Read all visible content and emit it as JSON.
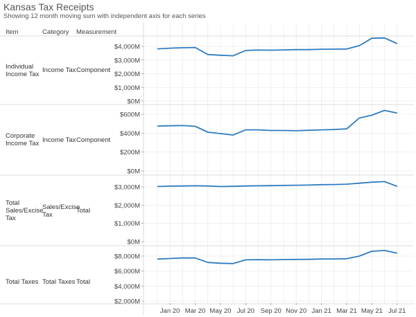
{
  "header": {
    "title": "Kansas Tax Receipts",
    "subtitle": "Showing 12 month moving sum with independent axis for each series",
    "col_item": "Item",
    "col_category": "Category",
    "col_measurement": "Measurement"
  },
  "colors": {
    "line": "#2e7bc0",
    "grid": "#e6e6e6",
    "border": "#cfcfcf"
  },
  "chart_data": {
    "type": "line",
    "x_tick_labels": [
      "Jan 20",
      "Mar 20",
      "May 20",
      "Jul 20",
      "Sep 20",
      "Nov 20",
      "Jan 21",
      "Mar 21",
      "May 21",
      "Jul 21"
    ],
    "x": [
      "Dec 19",
      "Jan 20",
      "Feb 20",
      "Mar 20",
      "Apr 20",
      "May 20",
      "Jun 20",
      "Jul 20",
      "Aug 20",
      "Sep 20",
      "Oct 20",
      "Nov 20",
      "Dec 20",
      "Jan 21",
      "Feb 21",
      "Mar 21",
      "Apr 21",
      "May 21",
      "Jun 21",
      "Jul 21"
    ],
    "grid": true,
    "rows": [
      {
        "item": [
          "Individual",
          "Income Tax"
        ],
        "category": [
          "Income Tax"
        ],
        "measurement": "Component",
        "y_ticks": [
          "$0M",
          "$1,000M",
          "$2,000M",
          "$3,000M",
          "$4,000M"
        ],
        "ylim": [
          0,
          4500
        ],
        "values": [
          3820,
          3870,
          3900,
          3920,
          3400,
          3350,
          3310,
          3700,
          3730,
          3720,
          3740,
          3760,
          3760,
          3790,
          3800,
          3810,
          4050,
          4600,
          4620,
          4200
        ]
      },
      {
        "item": [
          "Corporate",
          "Income Tax"
        ],
        "category": [
          "Income Tax"
        ],
        "measurement": "Component",
        "y_ticks": [
          "$0M",
          "$200M",
          "$400M",
          "$600M"
        ],
        "ylim": [
          0,
          660
        ],
        "values": [
          475,
          478,
          480,
          472,
          410,
          395,
          380,
          435,
          435,
          428,
          428,
          425,
          430,
          435,
          438,
          445,
          560,
          590,
          640,
          612
        ]
      },
      {
        "item": [
          "Total",
          "Sales/Excise",
          "Tax"
        ],
        "category": [
          "Sales/Excise",
          "Tax"
        ],
        "measurement": "Total",
        "y_ticks": [
          "$0M",
          "$1,000M",
          "$2,000M",
          "$3,000M"
        ],
        "ylim": [
          0,
          3350
        ],
        "values": [
          3020,
          3040,
          3050,
          3060,
          3050,
          3020,
          3030,
          3050,
          3060,
          3070,
          3080,
          3090,
          3100,
          3120,
          3130,
          3150,
          3200,
          3260,
          3290,
          3030
        ]
      },
      {
        "item": [
          "Total Taxes"
        ],
        "category": [
          "Total Taxes"
        ],
        "measurement": "Total",
        "y_ticks": [
          "$2,000M",
          "$4,000M",
          "$6,000M",
          "$8,000M"
        ],
        "ylim": [
          2000,
          9300
        ],
        "values": [
          7600,
          7680,
          7750,
          7750,
          7150,
          7050,
          7000,
          7500,
          7520,
          7500,
          7540,
          7560,
          7570,
          7610,
          7620,
          7650,
          8000,
          8650,
          8750,
          8400
        ]
      }
    ]
  }
}
